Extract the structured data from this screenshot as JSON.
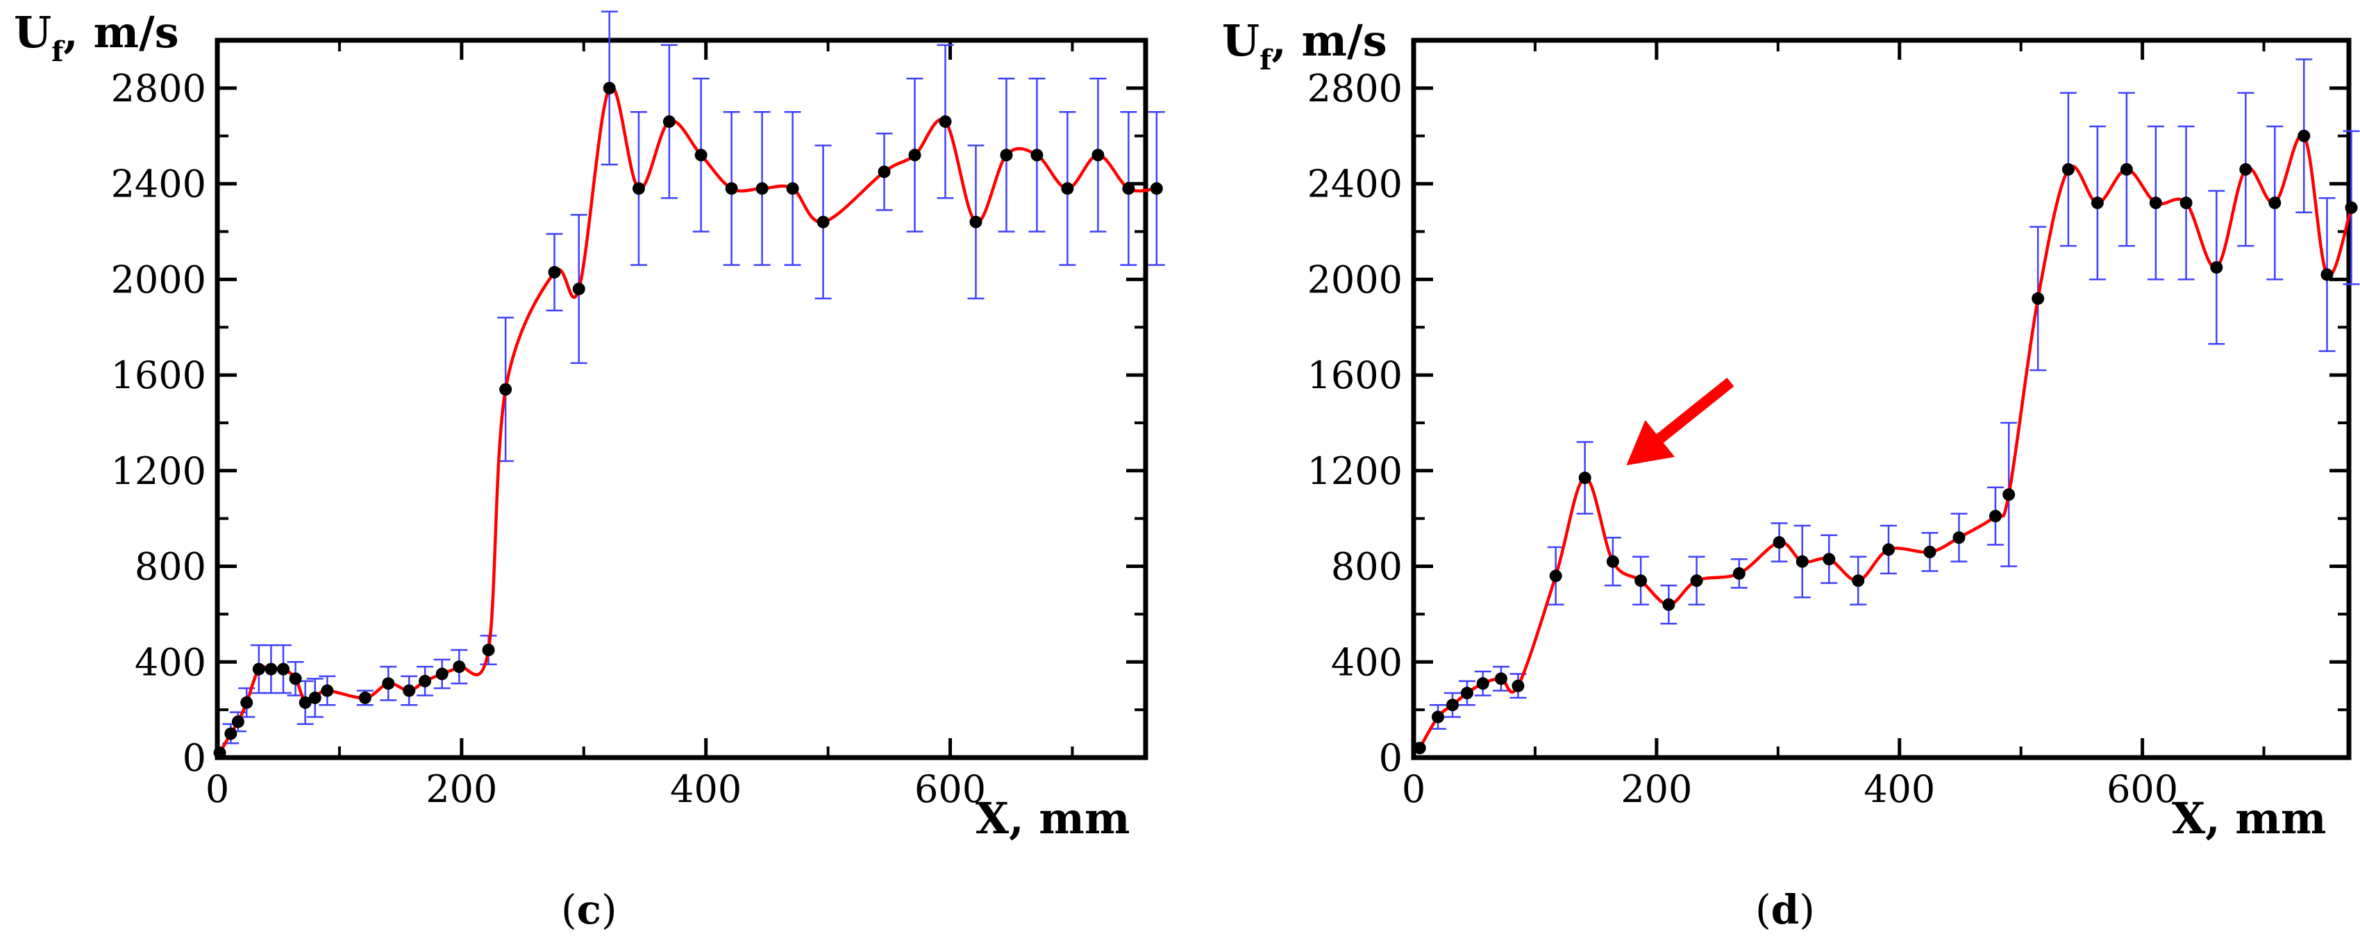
{
  "chart_data": [
    {
      "panel": "c",
      "type": "line",
      "panel_label": {
        "open": "(",
        "letter": "c",
        "close": ")"
      },
      "ylabel": {
        "main": "U",
        "sub": "f",
        "rest": ", m/s"
      },
      "xlabel": "X, mm",
      "xlim": [
        0,
        760
      ],
      "ylim": [
        0,
        3000
      ],
      "xticks": [
        0,
        200,
        400,
        600
      ],
      "yticks": [
        0,
        400,
        800,
        1200,
        1600,
        2000,
        2400,
        2800
      ],
      "x_tick_labels": [
        "0",
        "200",
        "400",
        "600"
      ],
      "y_tick_labels": [
        "0",
        "400",
        "800",
        "1200",
        "1600",
        "2000",
        "2400",
        "2800"
      ],
      "series": [
        {
          "name": "Uf",
          "line_color": "#ff0000",
          "marker_color": "#000000",
          "errorbar_color": "#4040ff",
          "x": [
            2,
            11,
            17,
            24,
            34,
            44,
            54,
            64,
            72,
            80,
            90,
            121,
            140,
            157,
            170,
            184,
            198,
            222,
            236,
            276,
            296,
            321,
            345,
            370,
            396,
            421,
            446,
            471,
            496,
            546,
            571,
            596,
            621,
            646,
            671,
            696,
            721,
            746,
            769
          ],
          "y": [
            20,
            100,
            150,
            230,
            370,
            370,
            370,
            330,
            230,
            250,
            280,
            250,
            310,
            280,
            320,
            350,
            380,
            450,
            1540,
            2030,
            1960,
            2800,
            2380,
            2660,
            2520,
            2380,
            2380,
            2380,
            2240,
            2450,
            2520,
            2660,
            2240,
            2520,
            2520,
            2380,
            2520,
            2380,
            2380
          ],
          "err": [
            0,
            40,
            40,
            60,
            100,
            100,
            100,
            70,
            90,
            80,
            60,
            30,
            70,
            60,
            60,
            60,
            70,
            60,
            300,
            160,
            310,
            320,
            320,
            320,
            320,
            320,
            320,
            320,
            320,
            160,
            320,
            320,
            320,
            320,
            320,
            320,
            320,
            320,
            320
          ]
        }
      ]
    },
    {
      "panel": "d",
      "type": "line",
      "panel_label": {
        "open": "(",
        "letter": "d",
        "close": ")"
      },
      "ylabel": {
        "main": "U",
        "sub": "f",
        "rest": ", m/s"
      },
      "xlabel": "X, mm",
      "xlim": [
        0,
        770
      ],
      "ylim": [
        0,
        3000
      ],
      "xticks": [
        0,
        200,
        400,
        600
      ],
      "yticks": [
        0,
        400,
        800,
        1200,
        1600,
        2000,
        2400,
        2800
      ],
      "x_tick_labels": [
        "0",
        "200",
        "400",
        "600"
      ],
      "y_tick_labels": [
        "0",
        "400",
        "800",
        "1200",
        "1600",
        "2000",
        "2400",
        "2800"
      ],
      "annotation": {
        "type": "arrow",
        "target_x": 150,
        "target_y": 1170,
        "color": "#ff0000"
      },
      "series": [
        {
          "name": "Uf",
          "line_color": "#ff0000",
          "marker_color": "#000000",
          "errorbar_color": "#4040ff",
          "x": [
            5,
            20,
            32,
            44,
            57,
            72,
            86,
            117,
            141,
            164,
            187,
            210,
            233,
            268,
            301,
            320,
            342,
            366,
            391,
            425,
            449,
            479,
            490,
            514,
            539,
            563,
            587,
            611,
            636,
            661,
            685,
            709,
            733,
            752,
            772
          ],
          "y": [
            40,
            170,
            220,
            270,
            310,
            330,
            300,
            760,
            1170,
            820,
            740,
            640,
            740,
            770,
            900,
            820,
            830,
            740,
            870,
            860,
            920,
            1010,
            1100,
            1920,
            2460,
            2320,
            2460,
            2320,
            2320,
            2050,
            2460,
            2320,
            2600,
            2020,
            2300
          ],
          "err": [
            0,
            50,
            50,
            50,
            50,
            50,
            50,
            120,
            150,
            100,
            100,
            80,
            100,
            60,
            80,
            150,
            100,
            100,
            100,
            80,
            100,
            120,
            300,
            300,
            320,
            320,
            320,
            320,
            320,
            320,
            320,
            320,
            320,
            320,
            320
          ]
        }
      ]
    }
  ]
}
